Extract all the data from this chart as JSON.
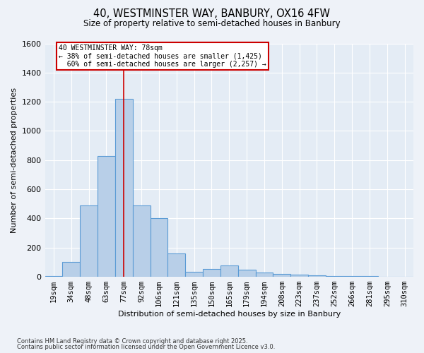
{
  "title_line1": "40, WESTMINSTER WAY, BANBURY, OX16 4FW",
  "title_line2": "Size of property relative to semi-detached houses in Banbury",
  "xlabel": "Distribution of semi-detached houses by size in Banbury",
  "ylabel": "Number of semi-detached properties",
  "bar_labels": [
    "19sqm",
    "34sqm",
    "48sqm",
    "63sqm",
    "77sqm",
    "92sqm",
    "106sqm",
    "121sqm",
    "135sqm",
    "150sqm",
    "165sqm",
    "179sqm",
    "194sqm",
    "208sqm",
    "223sqm",
    "237sqm",
    "252sqm",
    "266sqm",
    "281sqm",
    "295sqm",
    "310sqm"
  ],
  "bar_values": [
    5,
    100,
    490,
    830,
    1220,
    490,
    400,
    160,
    35,
    55,
    80,
    50,
    30,
    20,
    15,
    10,
    5,
    5,
    3,
    2,
    1
  ],
  "property_bin_index": 4,
  "property_label": "40 WESTMINSTER WAY: 78sqm",
  "pct_smaller": 38,
  "pct_larger": 60,
  "n_smaller": 1425,
  "n_larger": 2257,
  "bar_color": "#b8cfe8",
  "bar_edge_color": "#5b9bd5",
  "vline_color": "#cc0000",
  "annotation_edge_color": "#cc0000",
  "background_color": "#eef2f8",
  "plot_bg_color": "#e4ecf5",
  "grid_color": "#ffffff",
  "ylim": [
    0,
    1600
  ],
  "yticks": [
    0,
    200,
    400,
    600,
    800,
    1000,
    1200,
    1400,
    1600
  ],
  "footer_line1": "Contains HM Land Registry data © Crown copyright and database right 2025.",
  "footer_line2": "Contains public sector information licensed under the Open Government Licence v3.0."
}
